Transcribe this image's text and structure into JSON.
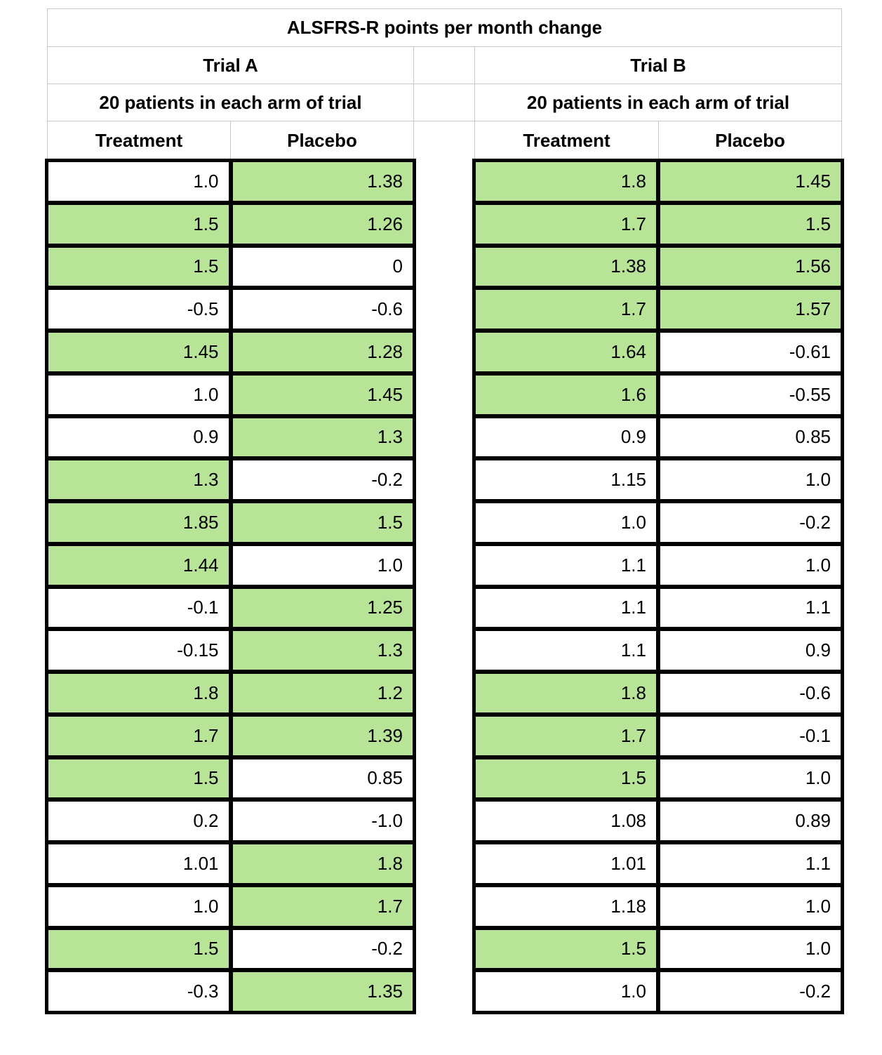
{
  "table": {
    "title": "ALSFRS-R points per month change",
    "trials": [
      {
        "name": "Trial A",
        "subtitle": "20 patients in each arm of trial",
        "columns": [
          "Treatment",
          "Placebo"
        ],
        "rows": [
          [
            {
              "v": "1.0",
              "hl": false
            },
            {
              "v": "1.38",
              "hl": true
            }
          ],
          [
            {
              "v": "1.5",
              "hl": true
            },
            {
              "v": "1.26",
              "hl": true
            }
          ],
          [
            {
              "v": "1.5",
              "hl": true
            },
            {
              "v": "0",
              "hl": false
            }
          ],
          [
            {
              "v": "-0.5",
              "hl": false
            },
            {
              "v": "-0.6",
              "hl": false
            }
          ],
          [
            {
              "v": "1.45",
              "hl": true
            },
            {
              "v": "1.28",
              "hl": true
            }
          ],
          [
            {
              "v": "1.0",
              "hl": false
            },
            {
              "v": "1.45",
              "hl": true
            }
          ],
          [
            {
              "v": "0.9",
              "hl": false
            },
            {
              "v": "1.3",
              "hl": true
            }
          ],
          [
            {
              "v": "1.3",
              "hl": true
            },
            {
              "v": "-0.2",
              "hl": false
            }
          ],
          [
            {
              "v": "1.85",
              "hl": true
            },
            {
              "v": "1.5",
              "hl": true
            }
          ],
          [
            {
              "v": "1.44",
              "hl": true
            },
            {
              "v": "1.0",
              "hl": false
            }
          ],
          [
            {
              "v": "-0.1",
              "hl": false
            },
            {
              "v": "1.25",
              "hl": true
            }
          ],
          [
            {
              "v": "-0.15",
              "hl": false
            },
            {
              "v": "1.3",
              "hl": true
            }
          ],
          [
            {
              "v": "1.8",
              "hl": true
            },
            {
              "v": "1.2",
              "hl": true
            }
          ],
          [
            {
              "v": "1.7",
              "hl": true
            },
            {
              "v": "1.39",
              "hl": true
            }
          ],
          [
            {
              "v": "1.5",
              "hl": true
            },
            {
              "v": "0.85",
              "hl": false
            }
          ],
          [
            {
              "v": "0.2",
              "hl": false
            },
            {
              "v": "-1.0",
              "hl": false
            }
          ],
          [
            {
              "v": "1.01",
              "hl": false
            },
            {
              "v": "1.8",
              "hl": true
            }
          ],
          [
            {
              "v": "1.0",
              "hl": false
            },
            {
              "v": "1.7",
              "hl": true
            }
          ],
          [
            {
              "v": "1.5",
              "hl": true
            },
            {
              "v": "-0.2",
              "hl": false
            }
          ],
          [
            {
              "v": "-0.3",
              "hl": false
            },
            {
              "v": "1.35",
              "hl": true
            }
          ]
        ]
      },
      {
        "name": "Trial B",
        "subtitle": "20 patients in each arm of trial",
        "columns": [
          "Treatment",
          "Placebo"
        ],
        "rows": [
          [
            {
              "v": "1.8",
              "hl": true
            },
            {
              "v": "1.45",
              "hl": true
            }
          ],
          [
            {
              "v": "1.7",
              "hl": true
            },
            {
              "v": "1.5",
              "hl": true
            }
          ],
          [
            {
              "v": "1.38",
              "hl": true
            },
            {
              "v": "1.56",
              "hl": true
            }
          ],
          [
            {
              "v": "1.7",
              "hl": true
            },
            {
              "v": "1.57",
              "hl": true
            }
          ],
          [
            {
              "v": "1.64",
              "hl": true
            },
            {
              "v": "-0.61",
              "hl": false
            }
          ],
          [
            {
              "v": "1.6",
              "hl": true
            },
            {
              "v": "-0.55",
              "hl": false
            }
          ],
          [
            {
              "v": "0.9",
              "hl": false
            },
            {
              "v": "0.85",
              "hl": false
            }
          ],
          [
            {
              "v": "1.15",
              "hl": false
            },
            {
              "v": "1.0",
              "hl": false
            }
          ],
          [
            {
              "v": "1.0",
              "hl": false
            },
            {
              "v": "-0.2",
              "hl": false
            }
          ],
          [
            {
              "v": "1.1",
              "hl": false
            },
            {
              "v": "1.0",
              "hl": false
            }
          ],
          [
            {
              "v": "1.1",
              "hl": false
            },
            {
              "v": "1.1",
              "hl": false
            }
          ],
          [
            {
              "v": "1.1",
              "hl": false
            },
            {
              "v": "0.9",
              "hl": false
            }
          ],
          [
            {
              "v": "1.8",
              "hl": true
            },
            {
              "v": "-0.6",
              "hl": false
            }
          ],
          [
            {
              "v": "1.7",
              "hl": true
            },
            {
              "v": "-0.1",
              "hl": false
            }
          ],
          [
            {
              "v": "1.5",
              "hl": true
            },
            {
              "v": "1.0",
              "hl": false
            }
          ],
          [
            {
              "v": "1.08",
              "hl": false
            },
            {
              "v": "0.89",
              "hl": false
            }
          ],
          [
            {
              "v": "1.01",
              "hl": false
            },
            {
              "v": "1.1",
              "hl": false
            }
          ],
          [
            {
              "v": "1.18",
              "hl": false
            },
            {
              "v": "1.0",
              "hl": false
            }
          ],
          [
            {
              "v": "1.5",
              "hl": true
            },
            {
              "v": "1.0",
              "hl": false
            }
          ],
          [
            {
              "v": "1.0",
              "hl": false
            },
            {
              "v": "-0.2",
              "hl": false
            }
          ]
        ]
      }
    ]
  },
  "colors": {
    "highlight": "#b8e498",
    "default": "#ffffff",
    "header_border": "#c9c9c9",
    "grid_border": "#000000"
  }
}
